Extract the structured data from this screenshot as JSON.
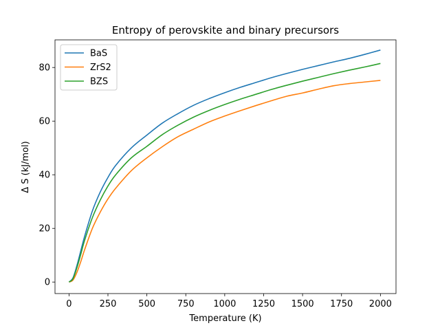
{
  "chart_data": {
    "type": "line",
    "title": "Entropy of perovskite and binary precursors",
    "xlabel": "Temperature (K)",
    "ylabel": "Δ S (kJ/mol)",
    "xlim": [
      -90,
      2100
    ],
    "ylim": [
      -4.3,
      90.3
    ],
    "xticks": [
      0,
      250,
      500,
      750,
      1000,
      1250,
      1500,
      1750,
      2000
    ],
    "xtick_labels": [
      "0",
      "250",
      "500",
      "750",
      "1000",
      "1250",
      "1500",
      "1750",
      "2000"
    ],
    "yticks": [
      0,
      20,
      40,
      60,
      80
    ],
    "ytick_labels": [
      "0",
      "20",
      "40",
      "60",
      "80"
    ],
    "grid": false,
    "legend": "top-left",
    "x": [
      0,
      25,
      50,
      75,
      100,
      150,
      200,
      250,
      300,
      400,
      500,
      600,
      700,
      800,
      900,
      1000,
      1100,
      1200,
      1300,
      1400,
      1500,
      1600,
      1700,
      1800,
      1900,
      2000
    ],
    "series": [
      {
        "name": "BaS",
        "color": "#1f77b4",
        "values": [
          0,
          1.5,
          6.0,
          11.5,
          17.0,
          26.5,
          33.5,
          39.0,
          43.5,
          50.0,
          54.8,
          59.3,
          62.8,
          65.9,
          68.4,
          70.6,
          72.6,
          74.4,
          76.2,
          77.8,
          79.3,
          80.7,
          82.1,
          83.4,
          84.9,
          86.5
        ]
      },
      {
        "name": "ZrS2",
        "color": "#ff7f0e",
        "values": [
          0,
          0.7,
          3.5,
          7.5,
          12.0,
          20.0,
          26.0,
          31.0,
          35.0,
          41.5,
          46.3,
          50.5,
          54.2,
          57.0,
          59.7,
          61.9,
          63.9,
          65.8,
          67.6,
          69.3,
          70.5,
          71.9,
          73.2,
          74.0,
          74.6,
          75.2
        ]
      },
      {
        "name": "BZS",
        "color": "#2ca02c",
        "values": [
          0,
          1.2,
          5.2,
          10.2,
          15.5,
          24.0,
          30.5,
          35.8,
          40.0,
          46.3,
          50.6,
          55.0,
          58.5,
          61.5,
          64.0,
          66.2,
          68.2,
          70.0,
          71.8,
          73.4,
          74.9,
          76.3,
          77.7,
          79.0,
          80.2,
          81.5
        ]
      }
    ]
  }
}
